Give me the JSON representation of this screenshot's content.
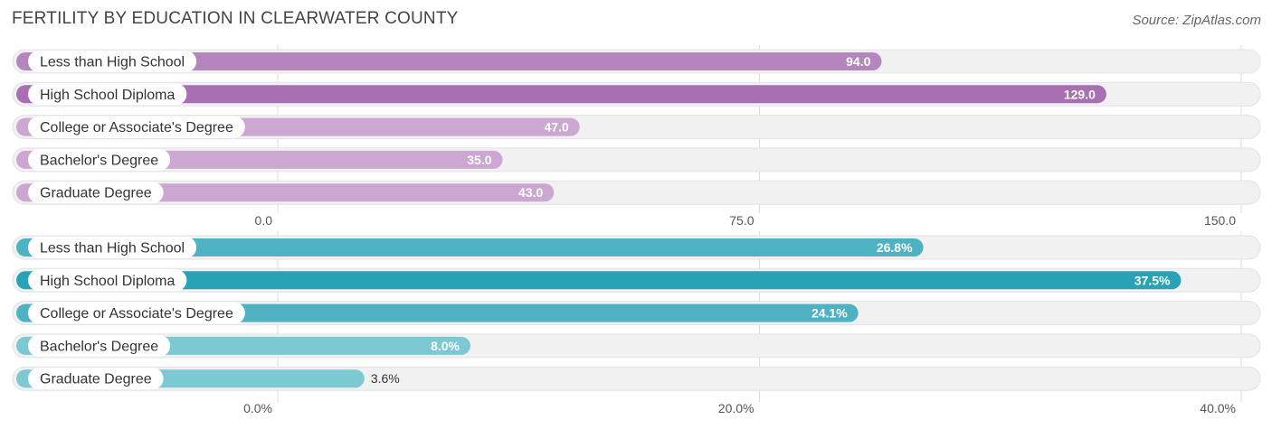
{
  "header": {
    "title": "FERTILITY BY EDUCATION IN CLEARWATER COUNTY",
    "source": "Source: ZipAtlas.com"
  },
  "chart_data": [
    {
      "type": "bar",
      "orientation": "horizontal",
      "categories": [
        "Less than High School",
        "High School Diploma",
        "College or Associate's Degree",
        "Bachelor's Degree",
        "Graduate Degree"
      ],
      "values": [
        94.0,
        129.0,
        47.0,
        35.0,
        43.0
      ],
      "value_labels": [
        "94.0",
        "129.0",
        "47.0",
        "35.0",
        "43.0"
      ],
      "xlim": [
        0,
        150
      ],
      "ticks": [
        0,
        75,
        150
      ],
      "tick_labels": [
        "0.0",
        "75.0",
        "150.0"
      ],
      "colors": [
        "#b585be",
        "#a86fb3",
        "#cca7d2",
        "#cca7d2",
        "#cca7d2"
      ],
      "grid": true
    },
    {
      "type": "bar",
      "orientation": "horizontal",
      "categories": [
        "Less than High School",
        "High School Diploma",
        "College or Associate's Degree",
        "Bachelor's Degree",
        "Graduate Degree"
      ],
      "values": [
        26.8,
        37.5,
        24.1,
        8.0,
        3.6
      ],
      "value_labels": [
        "26.8%",
        "37.5%",
        "24.1%",
        "8.0%",
        "3.6%"
      ],
      "xlim": [
        0,
        40
      ],
      "ticks": [
        0,
        20,
        40
      ],
      "tick_labels": [
        "0.0%",
        "20.0%",
        "40.0%"
      ],
      "colors": [
        "#4fb2c2",
        "#27a3b5",
        "#4fb2c2",
        "#7cc8d3",
        "#7cc8d3"
      ],
      "grid": true
    }
  ]
}
